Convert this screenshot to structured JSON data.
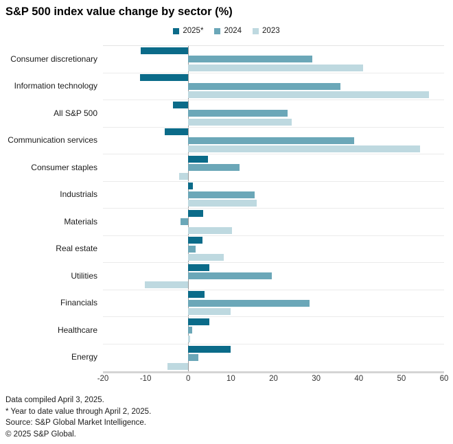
{
  "title": "S&P 500 index value change by sector (%)",
  "footer": {
    "lines": [
      "Data compiled April 3, 2025.",
      "* Year to date value through April 2, 2025.",
      "Source: S&P Global Market Intelligence.",
      "© 2025 S&P Global."
    ]
  },
  "colors": {
    "series_2025": "#0b6b89",
    "series_2024": "#6ba7b8",
    "series_2023": "#bed9e0",
    "zero_line": "#9a9a9a",
    "row_separator": "#ebebeb",
    "baseline": "#d4d4d4"
  },
  "chart_data": {
    "type": "bar",
    "orientation": "horizontal",
    "title": "S&P 500 index value change by sector (%)",
    "xlabel": "",
    "ylabel": "",
    "xlim": [
      -20,
      60
    ],
    "xticks": [
      -20,
      -10,
      0,
      10,
      20,
      30,
      40,
      50,
      60
    ],
    "grid": "category-separators-only",
    "legend_position": "top",
    "categories": [
      "Consumer discretionary",
      "Information technology",
      "All S&P 500",
      "Communication services",
      "Consumer staples",
      "Industrials",
      "Materials",
      "Real estate",
      "Utilities",
      "Financials",
      "Healthcare",
      "Energy"
    ],
    "series": [
      {
        "name": "2025*",
        "color": "#0b6b89",
        "values": [
          -11.2,
          -11.3,
          -3.6,
          -5.5,
          4.7,
          1.1,
          3.5,
          3.4,
          4.9,
          3.9,
          4.9,
          10.0
        ]
      },
      {
        "name": "2024",
        "color": "#6ba7b8",
        "values": [
          29.1,
          35.7,
          23.3,
          38.9,
          12.0,
          15.6,
          -1.8,
          1.8,
          19.6,
          28.4,
          1.0,
          2.4
        ]
      },
      {
        "name": "2023",
        "color": "#bed9e0",
        "values": [
          41.0,
          56.4,
          24.2,
          54.4,
          -2.2,
          16.0,
          10.2,
          8.3,
          -10.2,
          9.9,
          0.4,
          -4.8
        ]
      }
    ]
  }
}
